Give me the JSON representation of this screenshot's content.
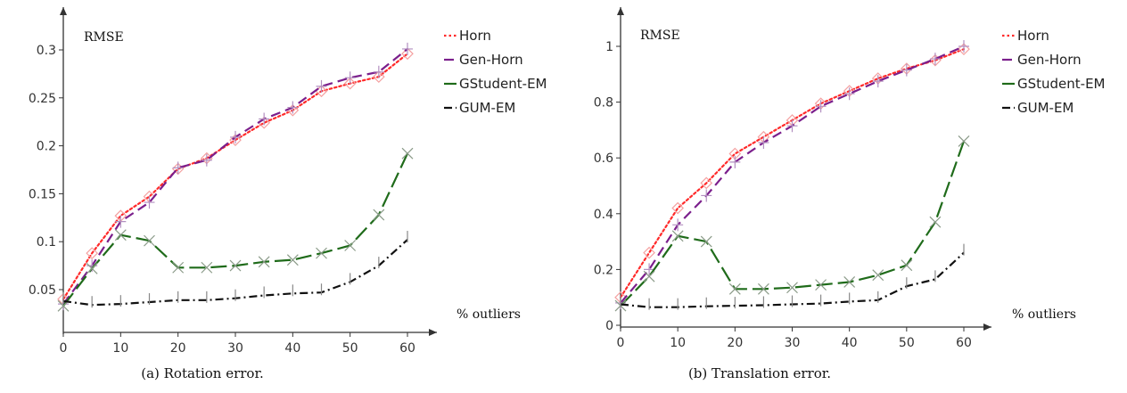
{
  "chart_data": [
    {
      "type": "line",
      "caption": "(a) Rotation error.",
      "xlabel": "% outliers",
      "ylabel": "RMSE",
      "x": [
        0,
        5,
        10,
        15,
        20,
        25,
        30,
        35,
        40,
        45,
        50,
        55,
        60
      ],
      "xlim": [
        0,
        60
      ],
      "ylim": [
        0.03,
        0.31
      ],
      "xticks": [
        0,
        10,
        20,
        30,
        40,
        50,
        60
      ],
      "yticks": [
        0.05,
        0.1,
        0.15,
        0.2,
        0.25,
        0.3
      ],
      "ytick_labels": [
        "0.05",
        "0.1",
        "0.15",
        "0.2",
        "0.25",
        "0.3"
      ],
      "legend": "top-right",
      "series": [
        {
          "name": "Horn",
          "color": "#ff2a2a",
          "dash": "dotted",
          "marker": "diamond",
          "values": [
            0.04,
            0.088,
            0.127,
            0.147,
            0.176,
            0.187,
            0.206,
            0.224,
            0.237,
            0.257,
            0.265,
            0.272,
            0.296
          ]
        },
        {
          "name": "Gen-Horn",
          "color": "#7b1f8c",
          "dash": "dashed",
          "marker": "plus",
          "values": [
            0.035,
            0.075,
            0.121,
            0.141,
            0.177,
            0.185,
            0.209,
            0.228,
            0.24,
            0.262,
            0.271,
            0.277,
            0.301
          ]
        },
        {
          "name": "GStudent-EM",
          "color": "#1f6b1a",
          "dash": "longdash",
          "marker": "x",
          "values": [
            0.033,
            0.072,
            0.107,
            0.101,
            0.073,
            0.073,
            0.075,
            0.079,
            0.081,
            0.088,
            0.096,
            0.128,
            0.192
          ]
        },
        {
          "name": "GUM-EM",
          "color": "#111111",
          "dash": "dashdot",
          "marker": "vtick",
          "values": [
            0.038,
            0.034,
            0.035,
            0.037,
            0.039,
            0.039,
            0.041,
            0.044,
            0.046,
            0.047,
            0.058,
            0.075,
            0.102
          ]
        }
      ]
    },
    {
      "type": "line",
      "caption": "(b) Translation error.",
      "xlabel": "% outliers",
      "ylabel": "RMSE",
      "x": [
        0,
        5,
        10,
        15,
        20,
        25,
        30,
        35,
        40,
        45,
        50,
        55,
        60
      ],
      "xlim": [
        0,
        60
      ],
      "ylim": [
        0,
        1.0
      ],
      "xticks": [
        0,
        10,
        20,
        30,
        40,
        50,
        60
      ],
      "yticks": [
        0,
        0.2,
        0.4,
        0.6,
        0.8,
        1
      ],
      "ytick_labels": [
        "0",
        "0.2",
        "0.4",
        "0.6",
        "0.8",
        "1"
      ],
      "legend": "top-right",
      "series": [
        {
          "name": "Horn",
          "color": "#ff2a2a",
          "dash": "dotted",
          "marker": "diamond",
          "values": [
            0.1,
            0.26,
            0.42,
            0.51,
            0.615,
            0.675,
            0.735,
            0.795,
            0.84,
            0.885,
            0.92,
            0.95,
            0.99
          ]
        },
        {
          "name": "Gen-Horn",
          "color": "#7b1f8c",
          "dash": "dashed",
          "marker": "plus",
          "values": [
            0.08,
            0.2,
            0.36,
            0.465,
            0.585,
            0.655,
            0.715,
            0.785,
            0.83,
            0.875,
            0.915,
            0.955,
            1.0
          ]
        },
        {
          "name": "GStudent-EM",
          "color": "#1f6b1a",
          "dash": "longdash",
          "marker": "x",
          "values": [
            0.07,
            0.175,
            0.32,
            0.3,
            0.13,
            0.13,
            0.135,
            0.145,
            0.155,
            0.18,
            0.215,
            0.37,
            0.66
          ]
        },
        {
          "name": "GUM-EM",
          "color": "#111111",
          "dash": "dashdot",
          "marker": "vtick",
          "values": [
            0.075,
            0.065,
            0.065,
            0.068,
            0.07,
            0.072,
            0.075,
            0.078,
            0.085,
            0.09,
            0.14,
            0.165,
            0.26
          ]
        }
      ]
    }
  ]
}
